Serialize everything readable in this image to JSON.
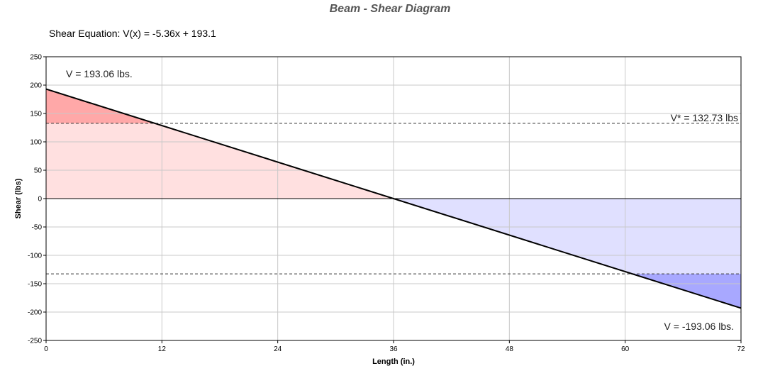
{
  "chart_data": {
    "type": "area",
    "title": "Beam - Shear Diagram",
    "equation_label": "Shear Equation:  V(x) = -5.36x + 193.1",
    "xlabel": "Length (in.)",
    "ylabel": "Shear (lbs)",
    "xlim": [
      0,
      72
    ],
    "ylim": [
      -250,
      250
    ],
    "xticks": [
      0,
      12,
      24,
      36,
      48,
      60,
      72
    ],
    "yticks": [
      250,
      200,
      150,
      100,
      50,
      0,
      -50,
      -100,
      -150,
      -200,
      -250
    ],
    "grid": true,
    "series": [
      {
        "x": [
          0,
          72
        ],
        "y": [
          193.06,
          -193.06
        ]
      }
    ],
    "limits": [
      132.73,
      -132.73
    ],
    "annotations": {
      "v_max": "V = 193.06 lbs.",
      "v_star": "V* = 132.73 lbs",
      "v_min": "V = -193.06 lbs."
    },
    "colors": {
      "positive_fill": "#ffe0e0",
      "positive_exceed_fill": "#ffa8a8",
      "negative_fill": "#e0e0ff",
      "negative_exceed_fill": "#a8a8ff",
      "line": "#000000",
      "grid": "#c8c8c8"
    }
  }
}
